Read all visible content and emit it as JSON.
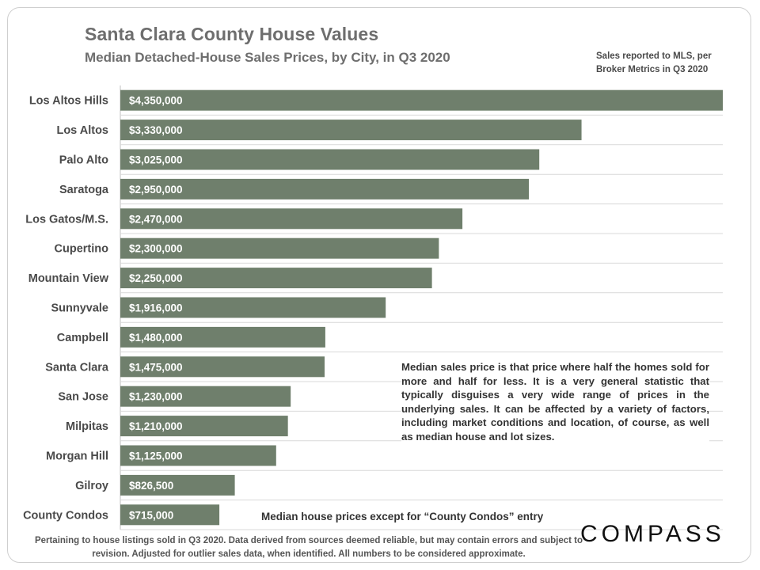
{
  "header": {
    "title": "Santa Clara County House Values",
    "subtitle": "Median Detached-House Sales Prices, by City, in Q3 2020",
    "source_note": "Sales reported to MLS, per Broker Metrics in Q3 2020"
  },
  "annotations": {
    "definition": "Median sales price is that price where half the homes sold for more and half for less. It is a very general statistic that typically disguises a very wide range of prices in the underlying sales. It can be affected by a variety of factors, including market conditions and location, of course, as well as median house and lot sizes.",
    "condo_note": "Median house prices except for “County Condos” entry"
  },
  "footer": {
    "text": "Pertaining to house listings sold in Q3 2020. Data derived from sources deemed reliable, but may contain errors and subject to revision. Adjusted for outlier sales data, when identified. All numbers to be considered approximate."
  },
  "brand": {
    "logo_text": "COMPASS"
  },
  "colors": {
    "bar": "#6f7f6c",
    "bar_label": "#ffffff",
    "category_label": "#4a4a4a",
    "gridline": "#d9d9d9"
  },
  "chart_data": {
    "type": "bar",
    "orientation": "horizontal",
    "categories": [
      "Los Altos Hills",
      "Los Altos",
      "Palo Alto",
      "Saratoga",
      "Los Gatos/M.S.",
      "Cupertino",
      "Mountain View",
      "Sunnyvale",
      "Campbell",
      "Santa Clara",
      "San Jose",
      "Milpitas",
      "Morgan Hill",
      "Gilroy",
      "County Condos"
    ],
    "values": [
      4350000,
      3330000,
      3025000,
      2950000,
      2470000,
      2300000,
      2250000,
      1916000,
      1480000,
      1475000,
      1230000,
      1210000,
      1125000,
      826500,
      715000
    ],
    "value_labels": [
      "$4,350,000",
      "$3,330,000",
      "$3,025,000",
      "$2,950,000",
      "$2,470,000",
      "$2,300,000",
      "$2,250,000",
      "$1,916,000",
      "$1,480,000",
      "$1,475,000",
      "$1,230,000",
      "$1,210,000",
      "$1,125,000",
      "$826,500",
      "$715,000"
    ],
    "xlim": [
      0,
      4350000
    ],
    "grid": true
  }
}
